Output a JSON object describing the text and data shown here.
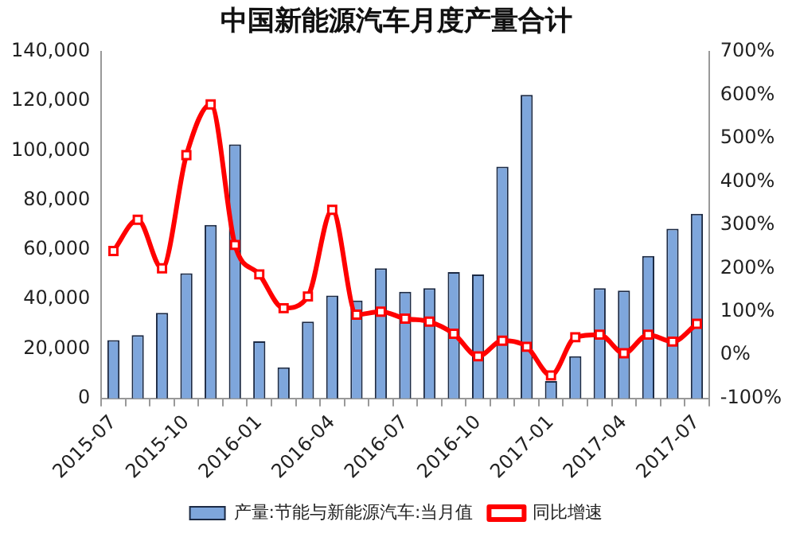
{
  "chart_data": {
    "type": "bar",
    "title": "中国新能源汽车月度产量合计",
    "categories": [
      "2015-07",
      null,
      null,
      "2015-10",
      null,
      null,
      "2016-01",
      null,
      null,
      "2016-04",
      null,
      null,
      "2016-07",
      null,
      null,
      "2016-10",
      null,
      null,
      "2017-01",
      null,
      null,
      "2017-04",
      null,
      null,
      "2017-07"
    ],
    "series": [
      {
        "name": "产量:节能与新能源汽车:当月值",
        "color": "#7ea6dc",
        "values": [
          23500,
          25500,
          34500,
          50500,
          70000,
          102500,
          23000,
          12500,
          31000,
          41500,
          39500,
          52500,
          43000,
          44500,
          51000,
          50000,
          93500,
          122500,
          7000,
          17000,
          44500,
          43500,
          57500,
          68500,
          74500
        ]
      },
      {
        "name": "同比增速",
        "type": "line",
        "axis": "y2",
        "color": "#ff0000",
        "values": [
          240,
          312,
          200,
          461,
          578,
          254,
          186,
          108,
          135,
          335,
          93,
          100,
          84,
          77,
          49,
          -3,
          33,
          19,
          -47,
          41,
          47,
          4,
          47,
          31,
          72
        ]
      }
    ],
    "ylim": [
      0,
      140000
    ],
    "yticks": [
      0,
      {
        "value": 20000,
        "label": "20,000"
      },
      {
        "value": 40000,
        "label": "40,000"
      },
      {
        "value": 60000,
        "label": "60,000"
      },
      {
        "value": 80000,
        "label": "80,000"
      },
      {
        "value": 100000,
        "label": "100,000"
      },
      {
        "value": 120000,
        "label": "120,000"
      },
      {
        "value": 140000,
        "label": "140,000"
      }
    ],
    "y2lim": [
      -100,
      700
    ],
    "y2ticks": [
      {
        "value": -100,
        "label": "-100%"
      },
      {
        "value": 0,
        "label": "0%"
      },
      {
        "value": 100,
        "label": "100%"
      },
      {
        "value": 200,
        "label": "200%"
      },
      {
        "value": 300,
        "label": "300%"
      },
      {
        "value": 400,
        "label": "400%"
      },
      {
        "value": 500,
        "label": "500%"
      },
      {
        "value": 600,
        "label": "600%"
      },
      {
        "value": 700,
        "label": "700%"
      }
    ],
    "grid": false,
    "legend": "bottom",
    "marker": "square"
  }
}
